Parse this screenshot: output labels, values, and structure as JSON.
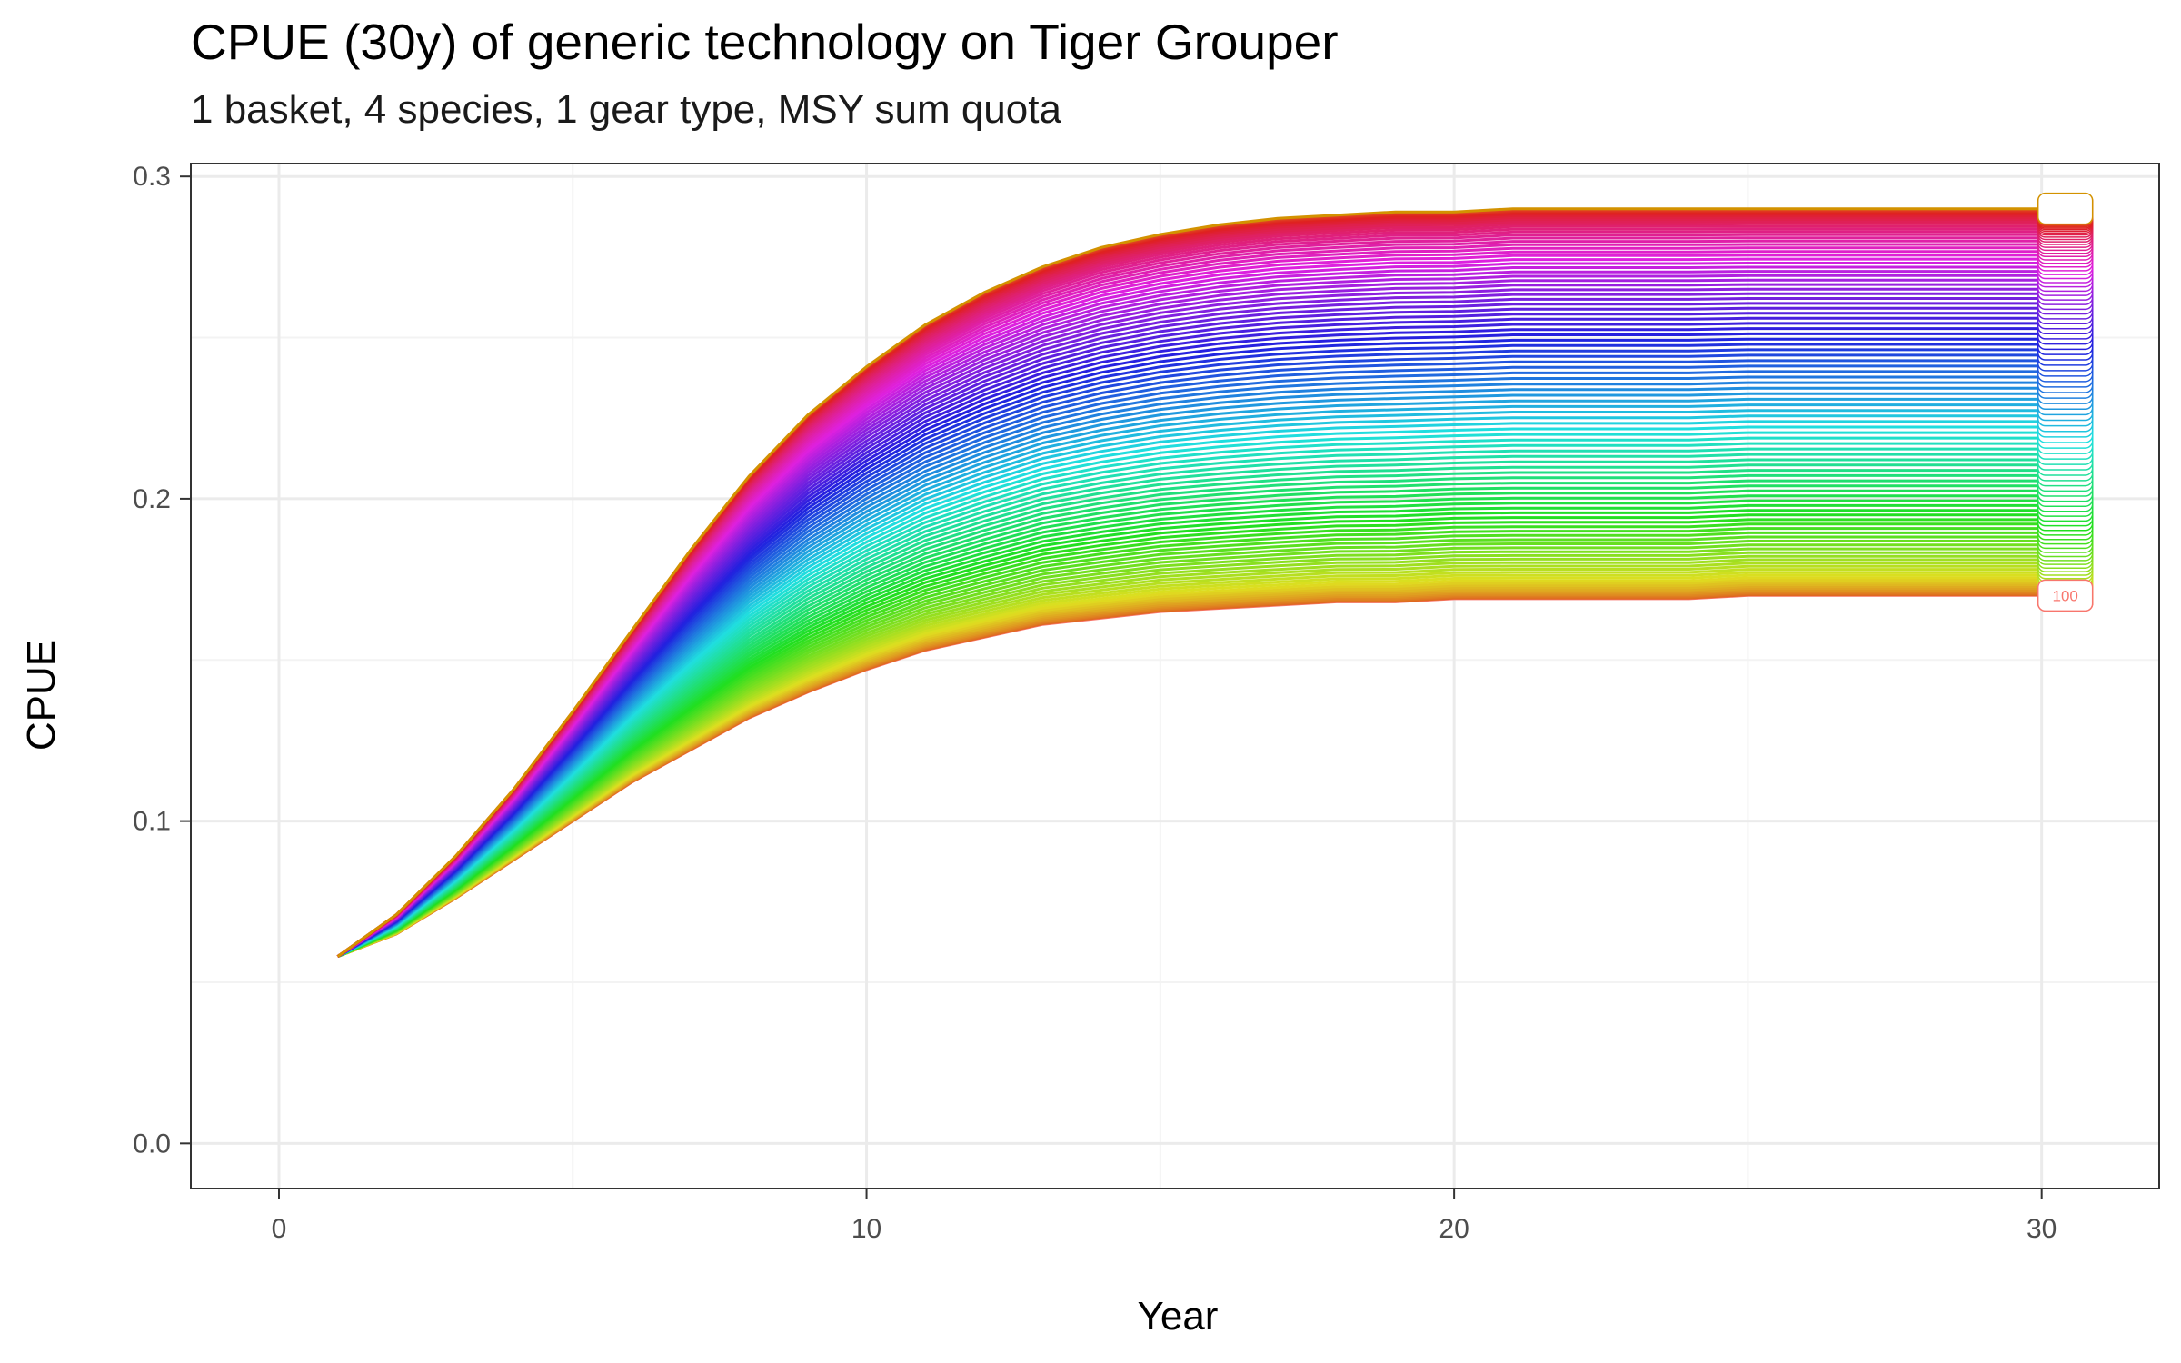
{
  "chart_data": {
    "type": "line",
    "title": "CPUE (30y) of generic technology on Tiger Grouper",
    "subtitle": "1 basket, 4 species, 1 gear type, MSY sum quota",
    "xlabel": "Year",
    "ylabel": "CPUE",
    "xlim": [
      -1.5,
      32
    ],
    "ylim": [
      -0.014,
      0.304
    ],
    "x_ticks": [
      "0",
      "10",
      "20",
      "30"
    ],
    "y_ticks": [
      "0.0",
      "0.1",
      "0.2",
      "0.3"
    ],
    "grid": true,
    "legend": "none",
    "x": [
      1,
      2,
      3,
      4,
      5,
      6,
      7,
      8,
      9,
      10,
      11,
      12,
      13,
      14,
      15,
      16,
      17,
      18,
      19,
      20,
      21,
      22,
      23,
      24,
      25,
      26,
      27,
      28,
      29,
      30
    ],
    "series_count": 100,
    "end_label": "100",
    "series_lowest": {
      "values": [
        0.058,
        0.065,
        0.076,
        0.088,
        0.1,
        0.112,
        0.122,
        0.132,
        0.14,
        0.147,
        0.153,
        0.157,
        0.161,
        0.163,
        0.165,
        0.166,
        0.167,
        0.168,
        0.168,
        0.169,
        0.169,
        0.169,
        0.169,
        0.169,
        0.17,
        0.17,
        0.17,
        0.17,
        0.17,
        0.17
      ],
      "color": "#f8766d"
    },
    "series_highest": {
      "values": [
        0.058,
        0.071,
        0.089,
        0.11,
        0.134,
        0.159,
        0.184,
        0.207,
        0.226,
        0.241,
        0.254,
        0.264,
        0.272,
        0.278,
        0.282,
        0.285,
        0.287,
        0.288,
        0.289,
        0.289,
        0.29,
        0.29,
        0.29,
        0.29,
        0.29,
        0.29,
        0.29,
        0.29,
        0.29,
        0.29
      ],
      "color": "#d39200"
    },
    "colors": {
      "panel_border": "#333333",
      "grid_major": "#ebebeb",
      "grid_minor": "#f3f3f3"
    }
  }
}
